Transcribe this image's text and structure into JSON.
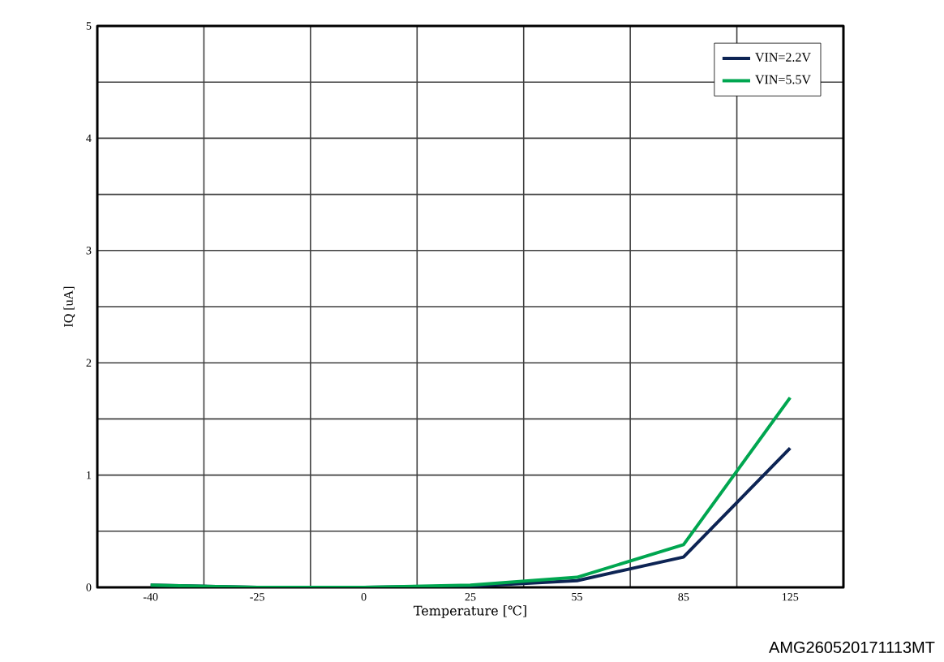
{
  "chart_data": {
    "type": "line",
    "xlabel": "Temperature [℃]",
    "ylabel": "IQ [uA]",
    "categories": [
      "-40",
      "-25",
      "0",
      "25",
      "55",
      "85",
      "125"
    ],
    "series": [
      {
        "name": "VIN=2.2V",
        "color": "#0d2454",
        "values": [
          0.02,
          0.0,
          0.0,
          0.01,
          0.06,
          0.27,
          1.24
        ]
      },
      {
        "name": "VIN=5.5V",
        "color": "#00a650",
        "values": [
          0.02,
          0.0,
          0.0,
          0.02,
          0.09,
          0.38,
          1.69
        ]
      }
    ],
    "ylim": [
      0,
      5
    ],
    "yticks": [
      0,
      {
        "value": 0.5,
        "label": null
      },
      1,
      {
        "value": 1.5,
        "label": null
      },
      2,
      {
        "value": 2.5,
        "label": null
      },
      3,
      {
        "value": 3.5,
        "label": null
      },
      4,
      {
        "value": 4.5,
        "label": null
      },
      5
    ],
    "grid": true,
    "legend": "top right",
    "marker": "none",
    "line_style": "solid",
    "annotations": [
      "AMG260520171113MT"
    ]
  }
}
